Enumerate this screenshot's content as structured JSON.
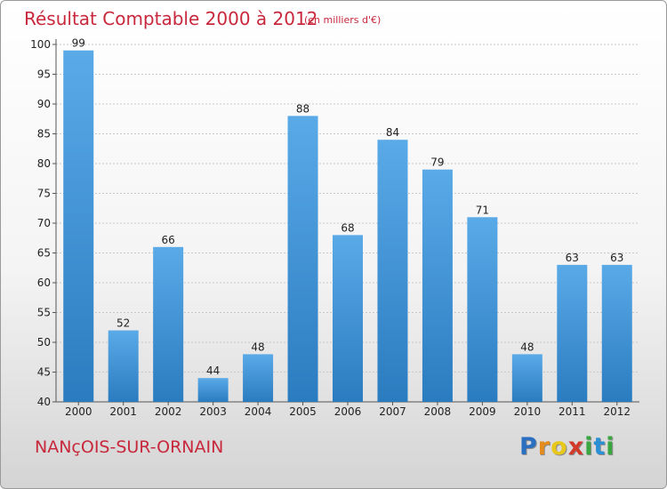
{
  "chart_data": {
    "type": "bar",
    "title": "Résultat Comptable 2000 à 2012",
    "subtitle": "(en milliers d'€)",
    "categories": [
      "2000",
      "2001",
      "2002",
      "2003",
      "2004",
      "2005",
      "2006",
      "2007",
      "2008",
      "2009",
      "2010",
      "2011",
      "2012"
    ],
    "values": [
      99,
      52,
      66,
      44,
      48,
      88,
      68,
      84,
      79,
      71,
      48,
      63,
      63
    ],
    "ylim": [
      40,
      100
    ],
    "yticks": [
      40,
      45,
      50,
      55,
      60,
      65,
      70,
      75,
      80,
      85,
      90,
      95,
      100
    ],
    "xlabel": "",
    "ylabel": "",
    "grid": true,
    "bar_color_top": "#5aaae8",
    "bar_color_bottom": "#2a7cc0"
  },
  "footer": {
    "commune": "NANçOIS-SUR-ORNAIN",
    "logo_letters": [
      "P",
      "r",
      "o",
      "x",
      "i",
      "t",
      "i"
    ],
    "logo_colors": [
      "#2b6fc0",
      "#e58a1c",
      "#e8c81a",
      "#d23a2a",
      "#3aa640",
      "#2b8fd6",
      "#3aa640"
    ]
  }
}
